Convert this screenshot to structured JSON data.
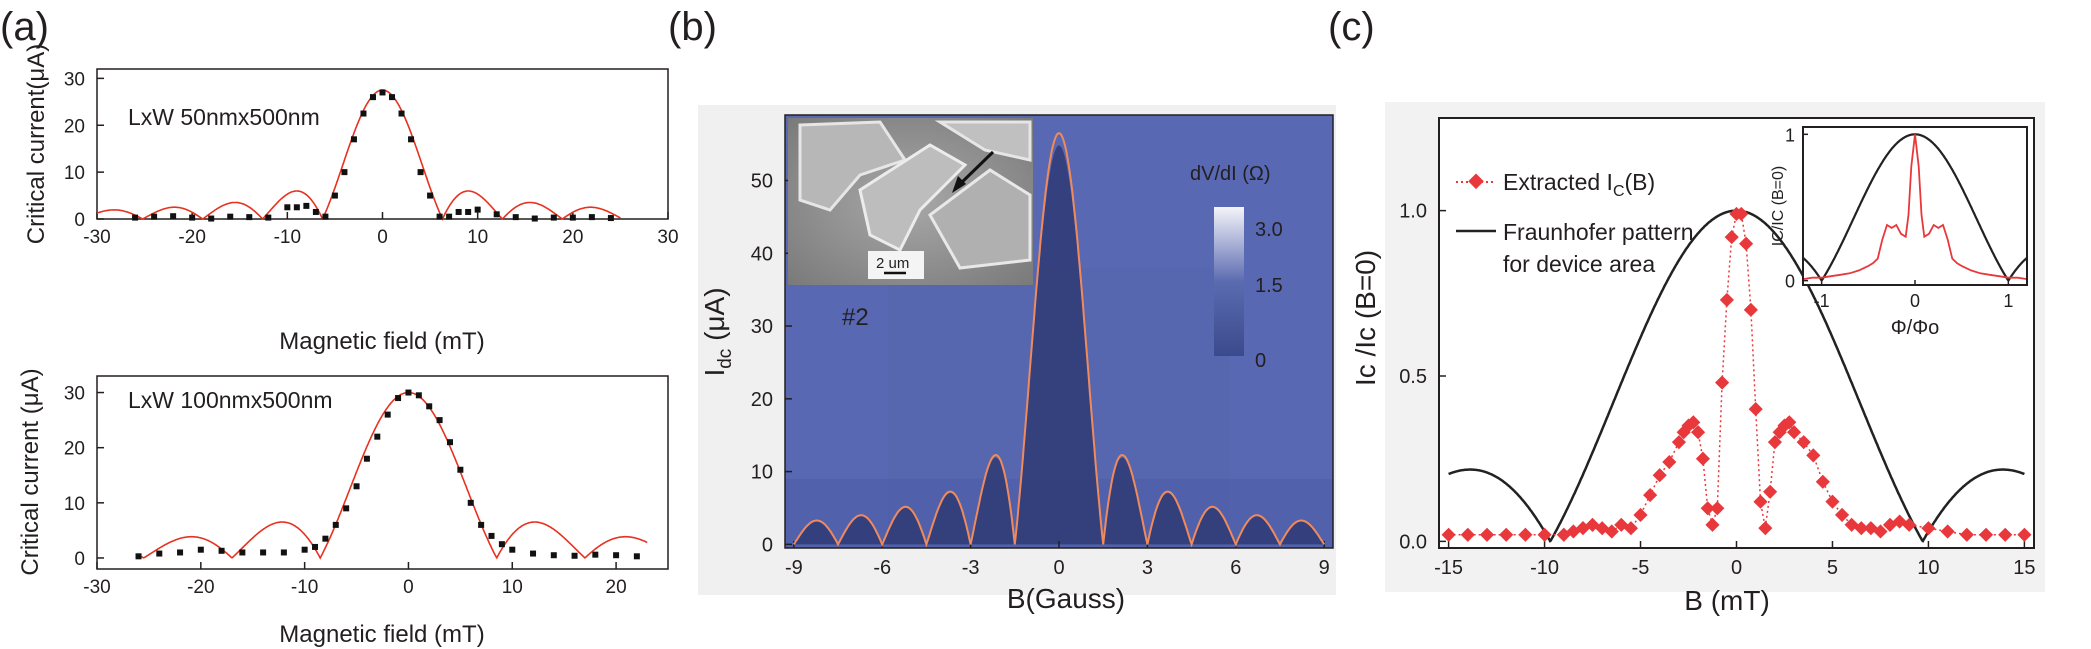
{
  "figure": {
    "panel_labels": [
      "(a)",
      "(b)",
      "(c)"
    ],
    "panel_a": {
      "top": {
        "annotation": "LxW 50nmx500nm",
        "xlabel": "Magnetic field (mT)",
        "ylabel": "Critical current(μA)"
      },
      "bottom": {
        "annotation": "LxW 100nmx500nm",
        "xlabel": "Magnetic field (mT)",
        "ylabel_main": "Critical current (",
        "ylabel_unit": "μA)"
      }
    },
    "panel_b": {
      "xlabel": "B(Gauss)",
      "ylabel_main": "I",
      "ylabel_sub": "dc",
      "ylabel_unit": " (μA)",
      "sample_label": "#2",
      "scale_bar_label": "2 um",
      "colorbar_title": "dV/dI (Ω)",
      "colorbar_ticks": [
        "3.0",
        "1.5",
        "0"
      ]
    },
    "panel_c": {
      "xlabel": "B (mT)",
      "ylabel": "Ic /Ic (B=0)",
      "legend_extracted_main": "Extracted I",
      "legend_extracted_sub": "C",
      "legend_extracted_tail": "(B)",
      "legend_fraunhofer_line1": "Fraunhofer pattern",
      "legend_fraunhofer_line2": "for device area",
      "inset_xlabel": "Φ/Φo",
      "inset_ylabel": "IC/IC (B=0)"
    }
  },
  "chart_data": [
    {
      "id": "a-top",
      "type": "scatter",
      "xlim": [
        -30,
        30
      ],
      "ylim": [
        0,
        32
      ],
      "xticks": [
        -30,
        -20,
        -10,
        0,
        10,
        20,
        30
      ],
      "yticks": [
        0,
        10,
        20,
        30
      ],
      "series": [
        {
          "kind": "markers",
          "color": "#111111",
          "x": [
            -26,
            -24,
            -22,
            -20,
            -18,
            -16,
            -14,
            -12,
            -10,
            -9,
            -8,
            -7,
            -6,
            -5,
            -4,
            -3,
            -2,
            -1,
            0,
            1,
            2,
            3,
            4,
            5,
            6,
            7,
            8,
            9,
            10,
            12,
            14,
            16,
            18,
            20,
            22,
            24
          ],
          "y": [
            0.3,
            0.5,
            0.6,
            0.3,
            0.1,
            0.5,
            0.4,
            0.3,
            2.5,
            2.5,
            2.8,
            1.5,
            0.5,
            5,
            10,
            17,
            22.5,
            26,
            27,
            26,
            22.5,
            17,
            10,
            5,
            0.5,
            0.5,
            1.5,
            1.5,
            2,
            1,
            0.4,
            0.1,
            0.3,
            0.3,
            0.4,
            0.2
          ]
        },
        {
          "kind": "fraunhofer",
          "color": "#e8311f",
          "peak": 27.5,
          "period_mT": 6.3,
          "xrange": [
            -30,
            25
          ]
        }
      ]
    },
    {
      "id": "a-bottom",
      "type": "scatter",
      "xlim": [
        -30,
        25
      ],
      "ylim": [
        -2,
        33
      ],
      "xticks": [
        -30,
        -20,
        -10,
        0,
        10,
        20
      ],
      "yticks": [
        0,
        10,
        20,
        30
      ],
      "series": [
        {
          "kind": "markers",
          "color": "#111111",
          "x": [
            -26,
            -24,
            -22,
            -20,
            -18,
            -16,
            -14,
            -12,
            -10,
            -9,
            -8,
            -7,
            -6,
            -5,
            -4,
            -3,
            -2,
            -1,
            0,
            1,
            2,
            3,
            4,
            5,
            6,
            7,
            8,
            9,
            10,
            12,
            14,
            16,
            18,
            20,
            22
          ],
          "y": [
            0.3,
            0.8,
            1,
            1.5,
            1.3,
            1,
            1,
            1,
            1.5,
            2,
            3.5,
            6,
            9,
            13,
            18,
            22,
            26,
            29,
            30,
            29.5,
            27.5,
            25,
            21,
            16,
            10,
            6,
            4,
            2.5,
            1.5,
            0.8,
            0.5,
            0.4,
            0.6,
            0.5,
            0.3
          ]
        },
        {
          "kind": "fraunhofer",
          "color": "#e8311f",
          "peak": 30,
          "period_mT": 8.5,
          "xrange": [
            -26,
            23
          ]
        }
      ]
    },
    {
      "id": "b",
      "type": "heatmap",
      "xlim": [
        -9.3,
        9.3
      ],
      "ylim": [
        -0.5,
        59
      ],
      "xticks": [
        -9,
        -6,
        -3,
        0,
        3,
        6,
        9
      ],
      "yticks": [
        0,
        10,
        20,
        30,
        40,
        50
      ],
      "colorscale": {
        "min": 0,
        "max": 3.0,
        "low": "#3a4a8c",
        "mid": "#5b6bb0",
        "high": "#f4f4fa"
      },
      "series": [
        {
          "kind": "fraunhofer",
          "color": "#f08a5d",
          "peak": 56.5,
          "period_gauss": 1.5,
          "xrange": [
            -9,
            9
          ]
        }
      ]
    },
    {
      "id": "c",
      "type": "line",
      "xlim": [
        -15.5,
        15.5
      ],
      "ylim": [
        -0.02,
        1.28
      ],
      "xticks": [
        -15,
        -10,
        -5,
        0,
        5,
        10,
        15
      ],
      "yticks": [
        0,
        0.5,
        1.0
      ],
      "series": [
        {
          "kind": "markers",
          "color": "#e8383b",
          "name": "Extracted IC(B)",
          "x": [
            -15,
            -14,
            -13,
            -12,
            -11,
            -10,
            -9,
            -8.5,
            -8,
            -7.5,
            -7,
            -6.5,
            -6,
            -5.5,
            -5,
            -4.5,
            -4,
            -3.5,
            -3,
            -2.75,
            -2.5,
            -2.25,
            -2,
            -1.75,
            -1.5,
            -1.25,
            -1,
            -0.75,
            -0.5,
            -0.25,
            0,
            0.25,
            0.5,
            0.75,
            1,
            1.25,
            1.5,
            1.75,
            2,
            2.25,
            2.5,
            2.75,
            3,
            3.5,
            4,
            4.5,
            5,
            5.5,
            6,
            6.5,
            7,
            7.5,
            8,
            8.5,
            9,
            10,
            11,
            12,
            13,
            14,
            15
          ],
          "y": [
            0.02,
            0.02,
            0.02,
            0.02,
            0.02,
            0.02,
            0.02,
            0.03,
            0.04,
            0.05,
            0.04,
            0.03,
            0.05,
            0.04,
            0.08,
            0.14,
            0.2,
            0.24,
            0.3,
            0.33,
            0.35,
            0.36,
            0.33,
            0.25,
            0.1,
            0.05,
            0.1,
            0.48,
            0.73,
            0.92,
            0.99,
            0.99,
            0.9,
            0.7,
            0.4,
            0.12,
            0.04,
            0.15,
            0.3,
            0.33,
            0.35,
            0.36,
            0.33,
            0.3,
            0.26,
            0.18,
            0.12,
            0.08,
            0.05,
            0.04,
            0.04,
            0.03,
            0.05,
            0.06,
            0.05,
            0.04,
            0.03,
            0.02,
            0.02,
            0.02,
            0.02
          ]
        },
        {
          "kind": "fraunhofer",
          "color": "#222222",
          "name": "Fraunhofer pattern for device area",
          "period_mT": 9.7,
          "xrange": [
            -15,
            15
          ]
        }
      ]
    },
    {
      "id": "c-inset",
      "type": "line",
      "xlim": [
        -1.2,
        1.2
      ],
      "ylim": [
        -0.03,
        1.05
      ],
      "xticks": [
        -1,
        0,
        1
      ],
      "yticks": [
        0,
        1
      ],
      "series": [
        {
          "kind": "fraunhofer",
          "color": "#222222",
          "period": 1
        },
        {
          "kind": "data",
          "color": "#e8383b",
          "x": [
            -1.2,
            -1.1,
            -1,
            -0.9,
            -0.8,
            -0.7,
            -0.6,
            -0.5,
            -0.45,
            -0.4,
            -0.35,
            -0.3,
            -0.25,
            -0.2,
            -0.15,
            -0.1,
            -0.07,
            -0.04,
            0,
            0.04,
            0.07,
            0.1,
            0.15,
            0.2,
            0.25,
            0.3,
            0.35,
            0.4,
            0.45,
            0.5,
            0.6,
            0.7,
            0.8,
            0.9,
            1,
            1.1,
            1.2
          ],
          "y": [
            0.01,
            0.02,
            0.02,
            0.03,
            0.04,
            0.05,
            0.07,
            0.1,
            0.12,
            0.15,
            0.28,
            0.38,
            0.36,
            0.38,
            0.32,
            0.3,
            0.45,
            0.78,
            1.0,
            0.78,
            0.45,
            0.3,
            0.32,
            0.38,
            0.36,
            0.38,
            0.28,
            0.15,
            0.12,
            0.1,
            0.07,
            0.05,
            0.04,
            0.03,
            0.02,
            0.02,
            0.01
          ]
        }
      ]
    }
  ]
}
